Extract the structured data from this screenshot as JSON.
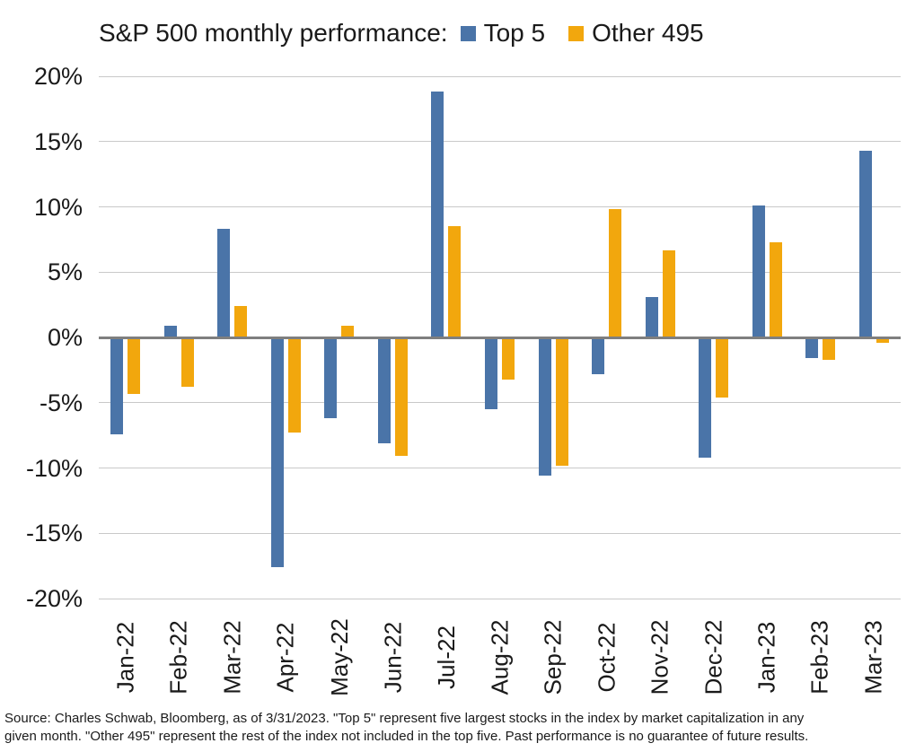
{
  "title": "S&P 500 monthly performance:",
  "source": {
    "line1": "Source: Charles Schwab, Bloomberg, as of 3/31/2023.  \"Top 5\" represent five largest stocks in the index by market capitalization in any",
    "line2": "given month. \"Other 495\" represent the rest of the index not included in the top five. Past performance is no guarantee of future results."
  },
  "colors": {
    "top5": "#4A74A8",
    "other495": "#F2A70D",
    "gridline": "#C9C9C9",
    "zero_axis": "#7F7F7F",
    "text": "#1A1A1A"
  },
  "chart_data": {
    "type": "bar",
    "title": "S&P 500 monthly performance:",
    "categories": [
      "Jan-22",
      "Feb-22",
      "Mar-22",
      "Apr-22",
      "May-22",
      "Jun-22",
      "Jul-22",
      "Aug-22",
      "Sep-22",
      "Oct-22",
      "Nov-22",
      "Dec-22",
      "Jan-23",
      "Feb-23",
      "Mar-23"
    ],
    "series": [
      {
        "name": "Top 5",
        "color": "#4A74A8",
        "values": [
          -7.4,
          0.9,
          8.3,
          -17.6,
          -6.2,
          -8.1,
          18.8,
          -5.5,
          -10.6,
          -2.8,
          3.1,
          -9.2,
          10.1,
          -1.6,
          14.3
        ]
      },
      {
        "name": "Other 495",
        "color": "#F2A70D",
        "values": [
          -4.3,
          -3.8,
          2.4,
          -7.3,
          0.9,
          -9.1,
          8.5,
          -3.2,
          -9.8,
          9.8,
          6.7,
          -4.6,
          7.3,
          -1.7,
          -0.4
        ]
      }
    ],
    "xlabel": "",
    "ylabel": "",
    "ylim": [
      -20,
      20
    ],
    "y_ticks": [
      {
        "value": 20,
        "label": "20%"
      },
      {
        "value": 15,
        "label": "15%"
      },
      {
        "value": 10,
        "label": "10%"
      },
      {
        "value": 5,
        "label": "5%"
      },
      {
        "value": 0,
        "label": "0%"
      },
      {
        "value": -5,
        "label": "-5%"
      },
      {
        "value": -10,
        "label": "-10%"
      },
      {
        "value": -15,
        "label": "-15%"
      },
      {
        "value": -20,
        "label": "-20%"
      }
    ],
    "grid": true,
    "legend_position": "top-right-of-title"
  }
}
